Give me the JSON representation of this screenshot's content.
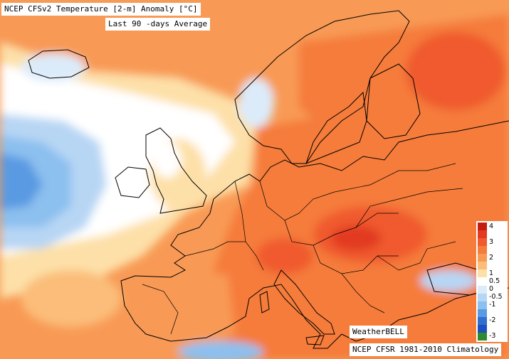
{
  "map": {
    "title": "NCEP CFSv2 Temperature [2-m] Anomaly  [°C]",
    "subtitle": "Last 90 -days Average",
    "credit": "WeatherBELL",
    "source": "NCEP CFSR 1981-2010 Climatology",
    "region": "Europe",
    "variable": "2-m temperature anomaly",
    "unit": "°C"
  },
  "legend": {
    "ticks": [
      "4",
      "3",
      "2",
      "1",
      "0.5",
      "0",
      "-0.5",
      "-1",
      "-2",
      "-3"
    ],
    "colors": [
      "#c41e10",
      "#e23b22",
      "#f05a2e",
      "#f57c3b",
      "#f89a55",
      "#fbbd79",
      "#fde0a8",
      "#ffffff",
      "#dcebfa",
      "#b7d6f4",
      "#8cc0ef",
      "#5a9ae2",
      "#2f6fd0",
      "#1d4fbd",
      "#2e8a2e"
    ],
    "steps": [
      4,
      3.5,
      3,
      2.5,
      2,
      1.5,
      1,
      0.5,
      0,
      -0.5,
      -1,
      -1.5,
      -2,
      -2.5,
      -3
    ]
  },
  "colors": {
    "ocean_north": "#fbbd79",
    "atlantic_cold": "#8cc0ef",
    "land_warm": "#f57c3b",
    "hot_core": "#e23b22",
    "coastline": "#000000"
  }
}
